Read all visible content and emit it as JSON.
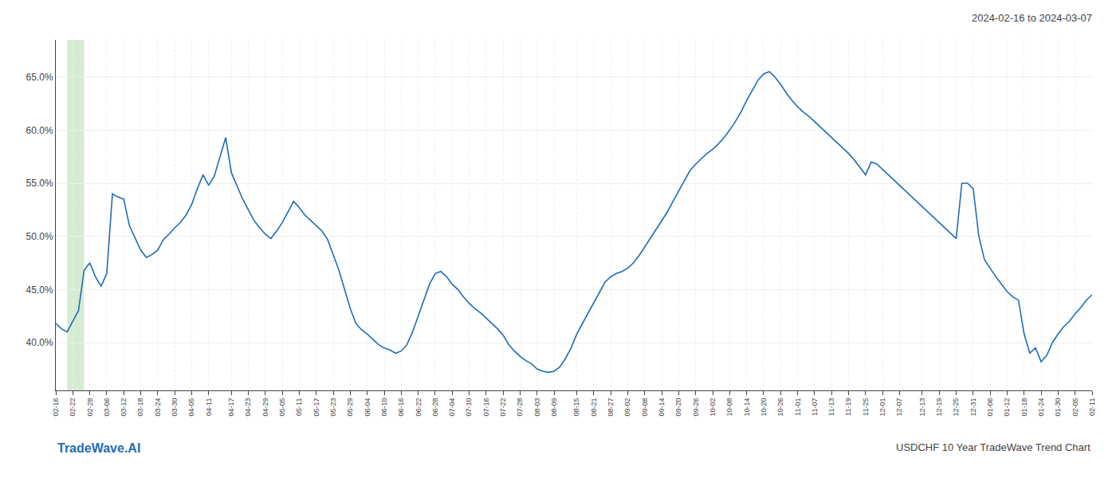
{
  "chart_data": {
    "type": "line",
    "title": "2024-02-16 to 2024-03-07",
    "annotations": [
      {
        "text": "TradeWave.AI",
        "color": "#1f6db5"
      },
      {
        "text": "USDCHF 10 Year TradeWave Trend Chart"
      }
    ],
    "categories": [
      "02-16",
      null,
      null,
      "02-22",
      null,
      null,
      "02-28",
      null,
      null,
      "03-06",
      null,
      null,
      "03-12",
      null,
      null,
      "03-18",
      null,
      null,
      "03-24",
      null,
      null,
      "03-30",
      null,
      null,
      "04-05",
      null,
      null,
      "04-11",
      null,
      null,
      null,
      "04-17",
      null,
      null,
      "04-23",
      null,
      null,
      "04-29",
      null,
      null,
      "05-05",
      null,
      null,
      "05-11",
      null,
      null,
      "05-17",
      null,
      null,
      "05-23",
      null,
      null,
      "05-29",
      null,
      null,
      "06-04",
      null,
      null,
      "06-10",
      null,
      null,
      "06-16",
      null,
      null,
      "06-22",
      null,
      null,
      "06-28",
      null,
      null,
      "07-04",
      null,
      null,
      "07-10",
      null,
      null,
      "07-16",
      null,
      null,
      "07-22",
      null,
      null,
      "07-28",
      null,
      null,
      "08-03",
      null,
      null,
      "08-09",
      null,
      null,
      null,
      "08-15",
      null,
      null,
      "08-21",
      null,
      null,
      "08-27",
      null,
      null,
      "09-02",
      null,
      null,
      "09-08",
      null,
      null,
      "09-14",
      null,
      null,
      "09-20",
      null,
      null,
      "09-26",
      null,
      null,
      "10-02",
      null,
      null,
      "10-08",
      null,
      null,
      "10-14",
      null,
      null,
      "10-20",
      null,
      null,
      "10-26",
      null,
      null,
      "11-01",
      null,
      null,
      "11-07",
      null,
      null,
      "11-13",
      null,
      null,
      "11-19",
      null,
      null,
      "11-25",
      null,
      null,
      "12-01",
      null,
      null,
      "12-07",
      null,
      null,
      null,
      "12-13",
      null,
      null,
      "12-19",
      null,
      null,
      "12-25",
      null,
      null,
      "12-31",
      null,
      null,
      "01-06",
      null,
      null,
      "01-12",
      null,
      null,
      "01-18",
      null,
      null,
      "01-24",
      null,
      null,
      "01-30",
      null,
      null,
      "02-05",
      null,
      null,
      "02-11"
    ],
    "values": [
      0.418,
      0.413,
      0.41,
      0.42,
      0.43,
      0.468,
      0.475,
      0.462,
      0.453,
      0.465,
      0.54,
      0.537,
      0.535,
      0.51,
      0.498,
      0.487,
      0.48,
      0.483,
      0.487,
      0.497,
      0.502,
      0.508,
      0.513,
      0.52,
      0.53,
      0.545,
      0.558,
      0.548,
      0.557,
      0.575,
      0.593,
      0.56,
      0.548,
      0.535,
      0.525,
      0.515,
      0.508,
      0.502,
      0.498,
      0.505,
      0.513,
      0.523,
      0.533,
      0.527,
      0.52,
      0.515,
      0.51,
      0.505,
      0.497,
      0.483,
      0.468,
      0.45,
      0.432,
      0.418,
      0.412,
      0.408,
      0.403,
      0.398,
      0.395,
      0.393,
      0.39,
      0.392,
      0.398,
      0.41,
      0.425,
      0.44,
      0.455,
      0.465,
      0.467,
      0.462,
      0.455,
      0.45,
      0.443,
      0.437,
      0.432,
      0.428,
      0.423,
      0.418,
      0.413,
      0.407,
      0.398,
      0.392,
      0.387,
      0.383,
      0.38,
      0.375,
      0.373,
      0.372,
      0.373,
      0.377,
      0.385,
      0.395,
      0.408,
      0.418,
      0.428,
      0.438,
      0.448,
      0.457,
      0.462,
      0.465,
      0.467,
      0.47,
      0.475,
      0.482,
      0.49,
      0.498,
      0.507,
      0.515,
      0.523,
      0.533,
      0.543,
      0.553,
      0.562,
      0.568,
      0.573,
      0.578,
      0.582,
      0.587,
      0.593,
      0.6,
      0.608,
      0.617,
      0.628,
      0.638,
      0.647,
      0.653,
      0.655,
      0.65,
      0.643,
      0.635,
      0.628,
      0.622,
      0.617,
      0.613,
      0.608,
      0.603,
      0.598,
      0.593,
      0.588,
      0.583,
      0.578,
      0.572,
      0.565,
      0.558,
      0.57,
      0.568,
      0.563,
      0.558,
      0.553,
      0.548,
      0.543,
      0.538,
      0.533,
      0.528,
      0.523,
      0.518,
      0.513,
      0.508,
      0.503,
      0.498,
      0.55,
      0.55,
      0.545,
      0.5,
      0.478,
      0.47,
      0.462,
      0.455,
      0.448,
      0.443,
      0.44,
      0.408,
      0.39,
      0.395,
      0.382,
      0.388,
      0.4,
      0.408,
      0.415,
      0.42,
      0.427,
      0.433,
      0.44,
      0.445
    ],
    "color": "#1f6db5",
    "highlight": {
      "from": 2,
      "to": 5,
      "color": "#d6ecd2"
    },
    "ylim": [
      0.355,
      0.685
    ],
    "yticks": [
      {
        "value": 0.4,
        "label": "40.0%"
      },
      {
        "value": 0.45,
        "label": "45.0%"
      },
      {
        "value": 0.5,
        "label": "50.0%"
      },
      {
        "value": 0.55,
        "label": "55.0%"
      },
      {
        "value": 0.6,
        "label": "60.0%"
      },
      {
        "value": 0.65,
        "label": "65.0%"
      }
    ],
    "grid": true
  }
}
